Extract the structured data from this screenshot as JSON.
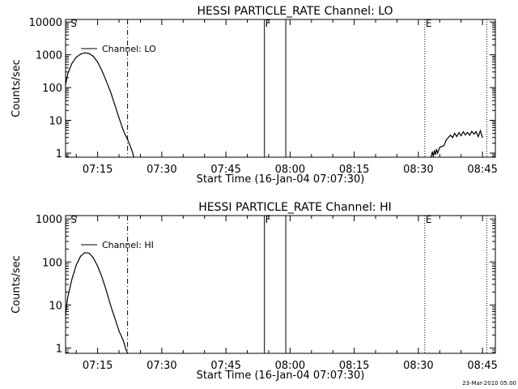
{
  "footer": {
    "timestamp": "23-Mar-2010 05:00"
  },
  "chart_data": [
    {
      "type": "line",
      "title": "HESSI PARTICLE_RATE Channel: LO",
      "xlabel": "Start Time (16-Jan-04 07:07:30)",
      "ylabel": "Counts/sec",
      "yscale": "log",
      "xlim": [
        "07:07:30",
        "08:48:00"
      ],
      "ylim": [
        0.75,
        12000
      ],
      "xticks": [
        "07:15",
        "07:30",
        "07:45",
        "08:00",
        "08:15",
        "08:30",
        "08:45"
      ],
      "yticks": [
        "1",
        "10",
        "100",
        "1000",
        "10000"
      ],
      "grid": false,
      "legend": "top-left",
      "markers": [
        {
          "label": "S",
          "time": "07:08:30",
          "style": "none"
        },
        {
          "label": "",
          "time": "07:22:00",
          "style": "dashdot"
        },
        {
          "label": "F",
          "time": "07:54:00",
          "style": "solid"
        },
        {
          "label": "",
          "time": "07:59:00",
          "style": "solid"
        },
        {
          "label": "E",
          "time": "08:31:30",
          "style": "dotted"
        },
        {
          "label": "",
          "time": "08:46:00",
          "style": "dotted"
        }
      ],
      "series": [
        {
          "name": "Channel: LO",
          "points": [
            [
              "07:07:30",
              120
            ],
            [
              "07:08:00",
              260
            ],
            [
              "07:09:00",
              550
            ],
            [
              "07:10:00",
              850
            ],
            [
              "07:11:00",
              1050
            ],
            [
              "07:12:00",
              1150
            ],
            [
              "07:13:00",
              1100
            ],
            [
              "07:14:00",
              900
            ],
            [
              "07:15:00",
              600
            ],
            [
              "07:16:00",
              330
            ],
            [
              "07:17:00",
              160
            ],
            [
              "07:18:00",
              75
            ],
            [
              "07:19:00",
              30
            ],
            [
              "07:20:00",
              12
            ],
            [
              "07:21:00",
              5
            ],
            [
              "07:21:30",
              3.5
            ],
            [
              "07:22:00",
              2.6
            ],
            [
              "07:22:30",
              1.8
            ],
            [
              "07:23:00",
              1.2
            ],
            [
              "07:23:30",
              0.75
            ]
          ]
        },
        {
          "name": "",
          "points": [
            [
              "08:33:00",
              0.75
            ],
            [
              "08:33:15",
              1.1
            ],
            [
              "08:33:30",
              0.8
            ],
            [
              "08:33:45",
              1.2
            ],
            [
              "08:34:00",
              0.9
            ],
            [
              "08:34:15",
              1.3
            ],
            [
              "08:34:30",
              1.0
            ],
            [
              "08:35:00",
              1.5
            ],
            [
              "08:35:30",
              1.6
            ],
            [
              "08:36:00",
              1.7
            ],
            [
              "08:36:30",
              2.5
            ],
            [
              "08:37:00",
              3.0
            ],
            [
              "08:37:30",
              3.5
            ],
            [
              "08:38:00",
              3.0
            ],
            [
              "08:38:30",
              4.0
            ],
            [
              "08:39:00",
              3.2
            ],
            [
              "08:39:30",
              4.2
            ],
            [
              "08:40:00",
              3.4
            ],
            [
              "08:40:30",
              4.5
            ],
            [
              "08:41:00",
              3.6
            ],
            [
              "08:41:30",
              4.3
            ],
            [
              "08:42:00",
              3.5
            ],
            [
              "08:42:30",
              4.6
            ],
            [
              "08:43:00",
              3.8
            ],
            [
              "08:43:30",
              4.5
            ],
            [
              "08:44:00",
              3.2
            ],
            [
              "08:44:30",
              4.8
            ],
            [
              "08:45:00",
              3.0
            ]
          ]
        }
      ]
    },
    {
      "type": "line",
      "title": "HESSI PARTICLE_RATE Channel: HI",
      "xlabel": "Start Time (16-Jan-04 07:07:30)",
      "ylabel": "Counts/sec",
      "yscale": "log",
      "xlim": [
        "07:07:30",
        "08:48:00"
      ],
      "ylim": [
        0.75,
        1200
      ],
      "xticks": [
        "07:15",
        "07:30",
        "07:45",
        "08:00",
        "08:15",
        "08:30",
        "08:45"
      ],
      "yticks": [
        "1",
        "10",
        "100",
        "1000"
      ],
      "grid": false,
      "legend": "top-left",
      "markers": [
        {
          "label": "S",
          "time": "07:08:30",
          "style": "none"
        },
        {
          "label": "",
          "time": "07:22:00",
          "style": "dashdot"
        },
        {
          "label": "F",
          "time": "07:54:00",
          "style": "solid"
        },
        {
          "label": "",
          "time": "07:59:00",
          "style": "solid"
        },
        {
          "label": "E",
          "time": "08:31:30",
          "style": "dotted"
        },
        {
          "label": "",
          "time": "08:46:00",
          "style": "dotted"
        }
      ],
      "series": [
        {
          "name": "Channel: HI",
          "points": [
            [
              "07:07:30",
              6
            ],
            [
              "07:08:00",
              15
            ],
            [
              "07:09:00",
              40
            ],
            [
              "07:10:00",
              85
            ],
            [
              "07:11:00",
              135
            ],
            [
              "07:12:00",
              165
            ],
            [
              "07:13:00",
              160
            ],
            [
              "07:14:00",
              125
            ],
            [
              "07:15:00",
              80
            ],
            [
              "07:16:00",
              45
            ],
            [
              "07:17:00",
              22
            ],
            [
              "07:18:00",
              10
            ],
            [
              "07:19:00",
              5
            ],
            [
              "07:20:00",
              2.5
            ],
            [
              "07:21:00",
              1.5
            ],
            [
              "07:21:30",
              1.0
            ],
            [
              "07:22:00",
              0.75
            ]
          ]
        }
      ]
    }
  ]
}
